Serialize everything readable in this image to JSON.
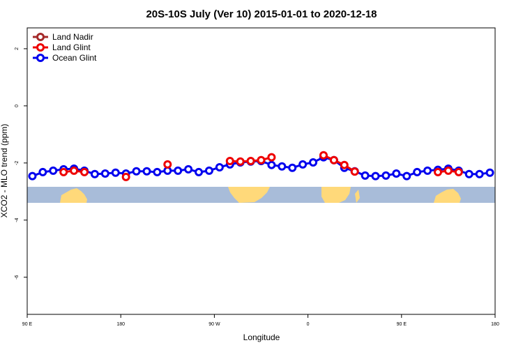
{
  "chart_data": {
    "type": "line",
    "title": "20S-10S July (Ver 10)   2015-01-01 to 2020-12-18",
    "xlabel": "Longitude",
    "ylabel": "XCO2 - MLO trend (ppm)",
    "x": [
      95,
      105,
      115,
      125,
      135,
      145,
      155,
      165,
      175,
      185,
      195,
      205,
      215,
      225,
      235,
      245,
      255,
      265,
      275,
      285,
      295,
      305,
      315,
      325,
      335,
      345,
      355,
      365,
      375,
      385,
      395,
      405,
      415,
      425,
      435,
      445,
      455,
      465,
      475,
      485,
      495,
      505,
      515,
      525,
      535
    ],
    "series": [
      {
        "name": "Land Nadir",
        "color": "#a52a2a",
        "values": [
          null,
          null,
          null,
          null,
          null,
          null,
          null,
          null,
          null,
          null,
          null,
          null,
          null,
          null,
          null,
          null,
          null,
          null,
          null,
          null,
          null,
          null,
          null,
          null,
          null,
          null,
          null,
          null,
          null,
          null,
          null,
          null,
          null,
          null,
          null,
          null,
          null,
          null,
          null,
          null,
          null,
          null,
          null,
          null,
          null
        ]
      },
      {
        "name": "Land Glint",
        "color": "#ee0000",
        "values": [
          null,
          null,
          null,
          -2.32,
          -2.27,
          -2.32,
          null,
          null,
          null,
          -2.49,
          null,
          null,
          null,
          -2.05,
          null,
          null,
          null,
          null,
          null,
          -1.93,
          -1.95,
          -1.93,
          -1.9,
          -1.8,
          null,
          null,
          null,
          null,
          -1.73,
          -1.9,
          -2.07,
          -2.3,
          null,
          null,
          null,
          null,
          null,
          null,
          null,
          -2.32,
          -2.27,
          -2.32,
          null,
          null,
          null
        ]
      },
      {
        "name": "Ocean Glint",
        "color": "#0000ee",
        "values": [
          -2.46,
          -2.32,
          -2.27,
          -2.22,
          -2.2,
          -2.27,
          -2.39,
          -2.37,
          -2.34,
          -2.37,
          -2.29,
          -2.29,
          -2.32,
          -2.27,
          -2.27,
          -2.22,
          -2.32,
          -2.27,
          -2.15,
          -2.05,
          -1.98,
          -1.95,
          -1.93,
          -2.07,
          -2.12,
          -2.17,
          -2.05,
          -1.98,
          -1.8,
          -1.9,
          -2.17,
          -2.29,
          -2.44,
          -2.46,
          -2.44,
          -2.37,
          -2.46,
          -2.32,
          -2.27,
          -2.24,
          -2.2,
          -2.27,
          -2.39,
          -2.39,
          -2.34
        ]
      }
    ],
    "xlim": [
      90,
      540
    ],
    "xticks": [
      {
        "value": 90,
        "label": "90 E"
      },
      180,
      {
        "value": 270,
        "label": "90 W"
      },
      {
        "value": 360,
        "label": "0"
      },
      {
        "value": 450,
        "label": "90 E"
      },
      {
        "value": 540,
        "label": "180"
      }
    ],
    "ylim": [
      -7.3,
      2.73
    ],
    "yticks": [
      -6,
      -4,
      -2,
      0,
      2
    ],
    "legend": "top-left"
  }
}
